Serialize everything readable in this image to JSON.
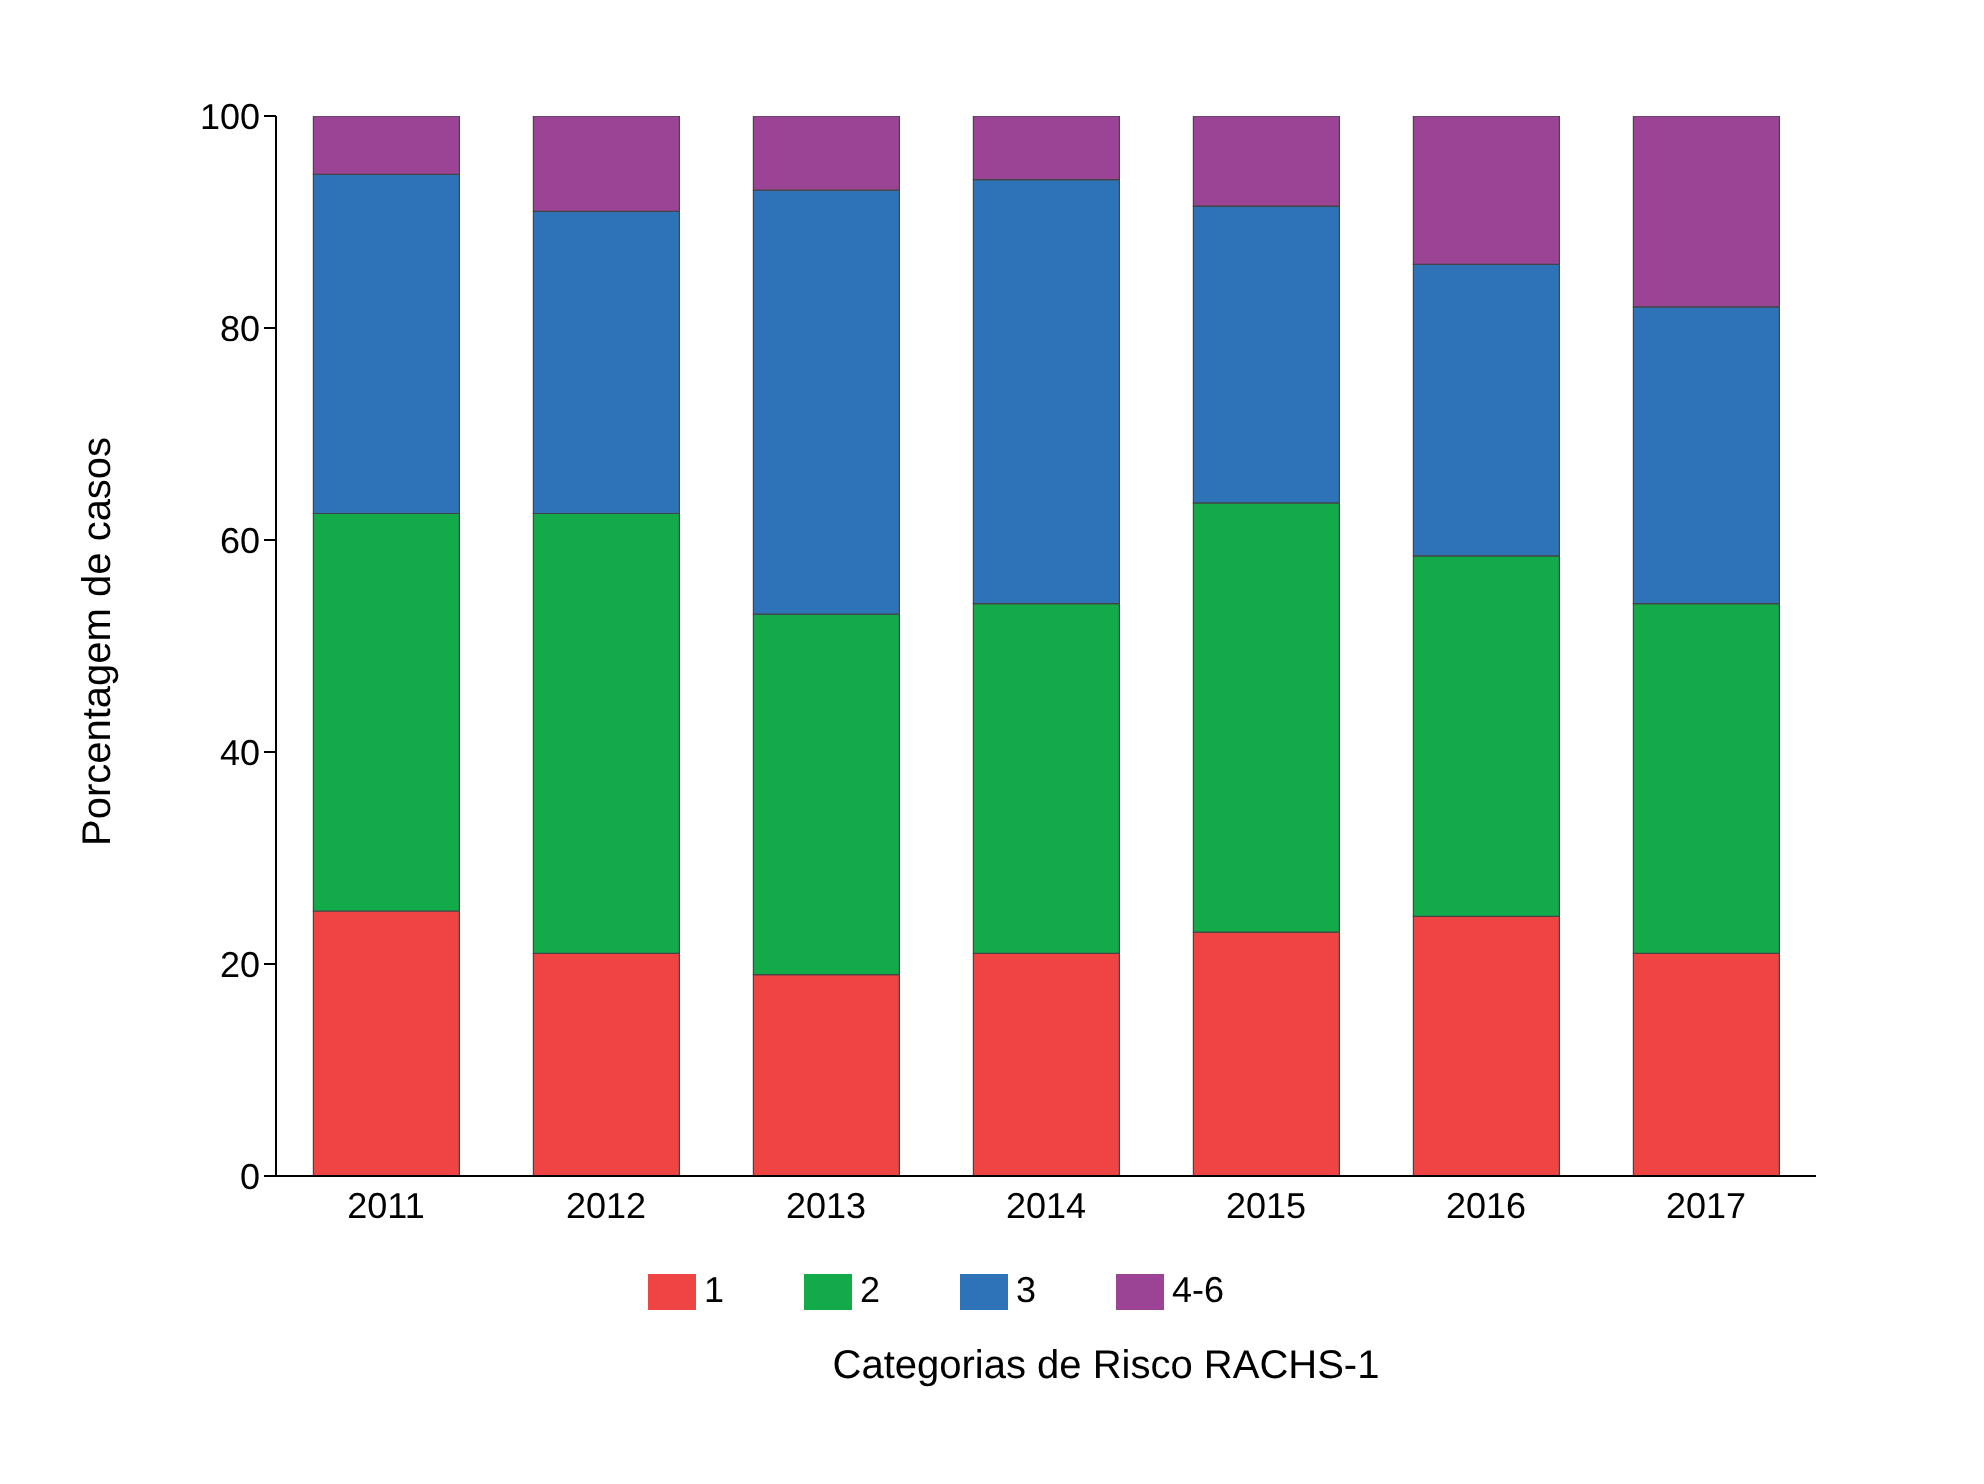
{
  "chart_data": {
    "type": "bar",
    "stacked": true,
    "xlabel": "Categorias de Risco RACHS-1",
    "ylabel": "Porcentagem de casos",
    "categories": [
      "2011",
      "2012",
      "2013",
      "2014",
      "2015",
      "2016",
      "2017"
    ],
    "series": [
      {
        "name": "1",
        "color": "#ee4444",
        "values": [
          25,
          21,
          19,
          21,
          23,
          24.5,
          21
        ]
      },
      {
        "name": "2",
        "color": "#13ab4a",
        "values": [
          37.5,
          41.5,
          34,
          33,
          40.5,
          34,
          33
        ]
      },
      {
        "name": "3",
        "color": "#2e73b8",
        "values": [
          32,
          28.5,
          40,
          40,
          28,
          27.5,
          28
        ]
      },
      {
        "name": "4-6",
        "color": "#9b4496",
        "values": [
          5.5,
          9,
          7,
          6,
          8.5,
          14,
          18
        ]
      }
    ],
    "ylim": [
      0,
      100
    ],
    "yticks": [
      0,
      20,
      40,
      60,
      80,
      100
    ],
    "grid": false,
    "legend": "bottom"
  }
}
